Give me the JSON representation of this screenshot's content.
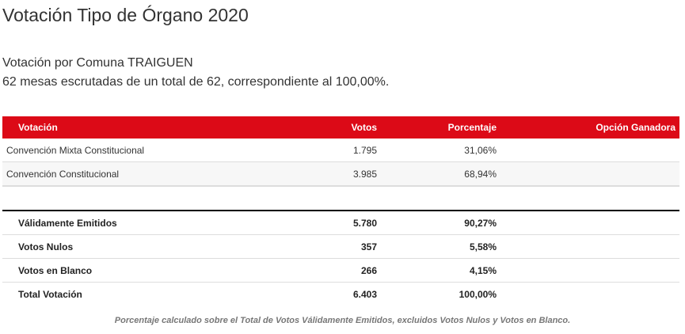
{
  "title": "Votación Tipo de Órgano 2020",
  "subtitle": "Votación por Comuna TRAIGUEN",
  "summary": "62 mesas escrutadas de un total de 62, correspondiente al 100,00%.",
  "table": {
    "headers": [
      "Votación",
      "Votos",
      "Porcentaje",
      "Opción Ganadora"
    ],
    "rows": [
      {
        "name": "Convención Mixta Constitucional",
        "votes": "1.795",
        "pct": "31,06%"
      },
      {
        "name": "Convención Constitucional",
        "votes": "3.985",
        "pct": "68,94%"
      }
    ]
  },
  "totals": [
    {
      "name": "Válidamente Emitidos",
      "votes": "5.780",
      "pct": "90,27%"
    },
    {
      "name": "Votos Nulos",
      "votes": "357",
      "pct": "5,58%"
    },
    {
      "name": "Votos en Blanco",
      "votes": "266",
      "pct": "4,15%"
    },
    {
      "name": "Total Votación",
      "votes": "6.403",
      "pct": "100,00%"
    }
  ],
  "note": "Porcentaje calculado sobre el Total de Votos Válidamente Emitidos, excluidos Votos Nulos y Votos en Blanco.",
  "colors": {
    "header": "#dc0a17"
  }
}
